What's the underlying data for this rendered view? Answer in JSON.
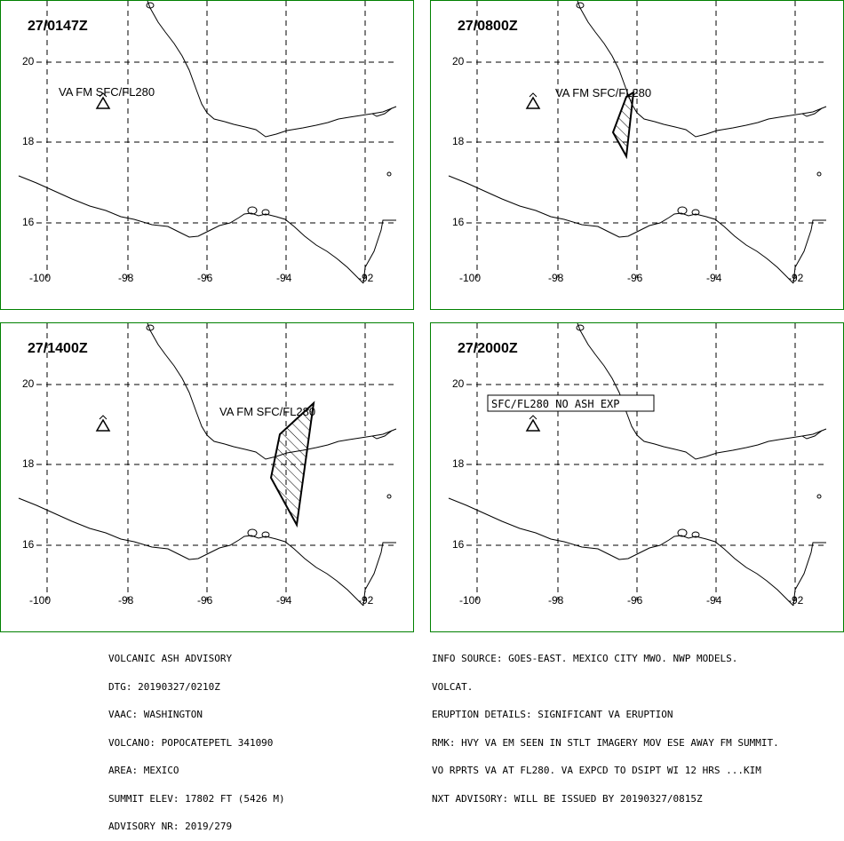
{
  "panels": [
    {
      "time": "27/0147Z",
      "label": "VA FM SFC/FL280",
      "label_boxed": false
    },
    {
      "time": "27/0800Z",
      "label": "VA FM SFC/FL280",
      "label_boxed": false
    },
    {
      "time": "27/1400Z",
      "label": "VA FM SFC/FL280",
      "label_boxed": false
    },
    {
      "time": "27/2000Z",
      "label": "SFC/FL280 NO ASH EXP",
      "label_boxed": true
    }
  ],
  "lat_labels": [
    "20",
    "18",
    "16"
  ],
  "lon_labels": [
    "-100",
    "-98",
    "-96",
    "-94",
    "-92"
  ],
  "advisory_left": [
    "VOLCANIC ASH ADVISORY",
    "DTG: 20190327/0210Z",
    "VAAC: WASHINGTON",
    "VOLCANO: POPOCATEPETL 341090",
    "AREA: MEXICO",
    "SUMMIT ELEV: 17802 FT (5426 M)",
    "ADVISORY NR: 2019/279"
  ],
  "advisory_right": [
    "INFO SOURCE: GOES-EAST. MEXICO CITY MWO. NWP MODELS.",
    "VOLCAT.",
    "ERUPTION DETAILS: SIGNIFICANT VA ERUPTION",
    "RMK: HVY VA EM SEEN IN STLT IMAGERY MOV ESE AWAY FM SUMMIT.",
    "VO RPRTS VA AT FL280. VA EXPCD TO DSIPT WI 12 HRS ...KIM",
    "NXT ADVISORY: WILL BE ISSUED BY 20190327/0815Z"
  ],
  "colors": {
    "frame": "#008000",
    "map": "#000000"
  }
}
